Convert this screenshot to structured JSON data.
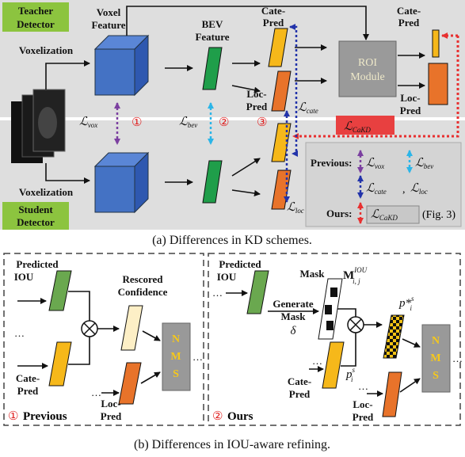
{
  "kd": {
    "teacher": [
      "Teacher",
      "Detector"
    ],
    "student": [
      "Student",
      "Detector"
    ],
    "voxelization_top": "Voxelization",
    "voxelization_bottom": "Voxelization",
    "voxel_feature": [
      "Voxel",
      "Feature"
    ],
    "bev_feature": [
      "BEV",
      "Feature"
    ],
    "cate_pred_teacher": [
      "Cate-",
      "Pred"
    ],
    "loc_pred_teacher": [
      "Loc-",
      "Pred"
    ],
    "roi_module": [
      "ROI",
      "Module"
    ],
    "roi_cate_pred": [
      "Cate-",
      "Pred"
    ],
    "roi_loc_pred": [
      "Loc-",
      "Pred"
    ],
    "losses": {
      "vox": {
        "symbol": "ℒ",
        "sub": "vox"
      },
      "bev": {
        "symbol": "ℒ",
        "sub": "bev"
      },
      "cate": {
        "symbol": "ℒ",
        "sub": "cate"
      },
      "loc": {
        "symbol": "ℒ",
        "sub": "loc"
      },
      "cakd": {
        "symbol": "ℒ",
        "sub": "CaKD"
      }
    },
    "markers": [
      "①",
      "②",
      "③"
    ],
    "legend": {
      "previous": "Previous:",
      "ours": "Ours:",
      "separator": ",",
      "fig_ref": "(Fig. 3)"
    },
    "caption": "(a) Differences in KD schemes."
  },
  "iou": {
    "ellipsis": "…",
    "nms": [
      "N",
      "M",
      "S"
    ],
    "previous": {
      "predicted_iou": [
        "Predicted",
        "IOU"
      ],
      "cate_pred": [
        "Cate-",
        "Pred"
      ],
      "rescored": [
        "Rescored",
        "Confidence"
      ],
      "loc_pred": [
        "Loc-",
        "Pred"
      ],
      "marker": "①",
      "label": "Previous"
    },
    "ours": {
      "predicted_iou": [
        "Predicted",
        "IOU"
      ],
      "generate": [
        "Generate",
        "Mask",
        "δ"
      ],
      "mask": "Mask",
      "mask_symbol": {
        "base": "M",
        "sup": "IOU",
        "sub": "i, j"
      },
      "cate_pred": [
        "Cate-",
        "Pred"
      ],
      "p": {
        "base": "p",
        "sup": "s",
        "sub": "i"
      },
      "p_star": {
        "base": "p*",
        "sup": "s",
        "sub": "i"
      },
      "loc_pred": [
        "Loc-",
        "Pred"
      ],
      "marker": "②",
      "label": "Ours"
    },
    "caption": "(b) Differences in IOU-aware refining."
  }
}
